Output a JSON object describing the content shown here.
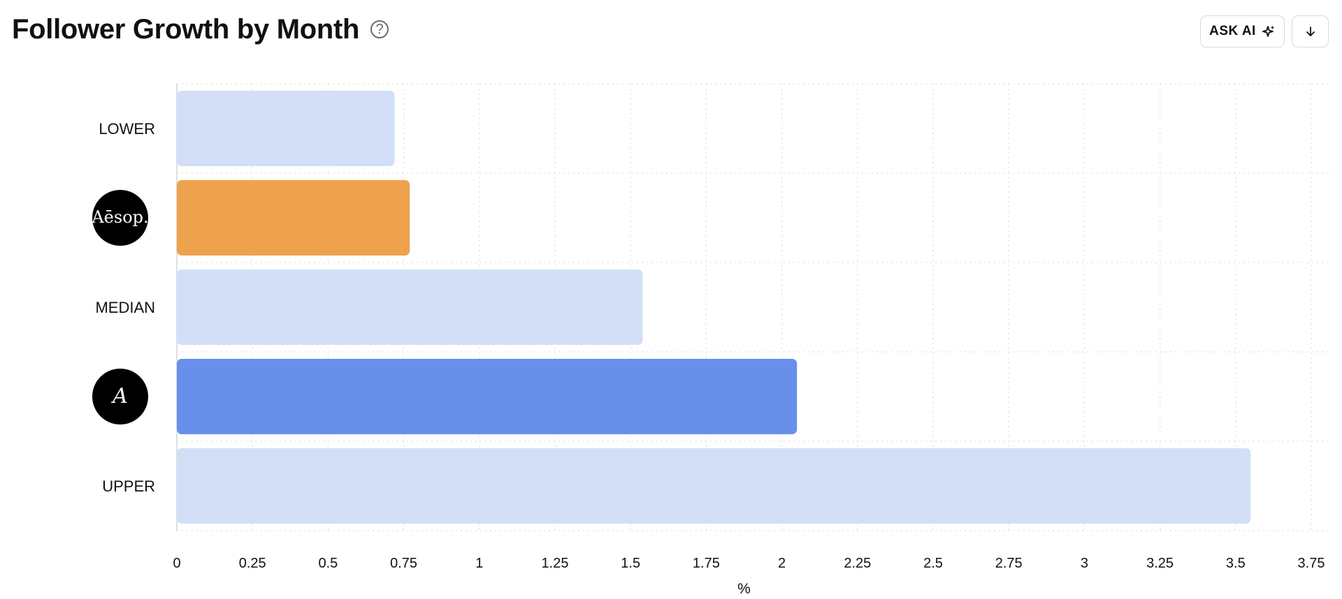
{
  "header": {
    "title": "Follower Growth by Month",
    "help_icon": "question-circle-icon",
    "ask_ai_label": "ASK AI",
    "ask_ai_icon": "sparkle-icon",
    "download_icon": "arrow-down-icon"
  },
  "chart_data": {
    "type": "bar",
    "orientation": "horizontal",
    "title": "Follower Growth by Month",
    "xlabel": "%",
    "ylabel": "",
    "xlim": [
      0,
      3.75
    ],
    "x_ticks": [
      "0",
      "0.25",
      "0.5",
      "0.75",
      "1",
      "1.25",
      "1.5",
      "1.75",
      "2",
      "2.25",
      "2.5",
      "2.75",
      "3",
      "3.25",
      "3.5",
      "3.75"
    ],
    "grid": true,
    "categories": [
      {
        "label": "LOWER",
        "kind": "text",
        "value": 0.72,
        "color": "#d2dff7"
      },
      {
        "label": "Aēsop.",
        "kind": "logo",
        "value": 0.77,
        "color": "#efa24e"
      },
      {
        "label": "MEDIAN",
        "kind": "text",
        "value": 1.54,
        "color": "#d2dff7"
      },
      {
        "label": "A",
        "kind": "logo",
        "value": 2.05,
        "color": "#6890ea"
      },
      {
        "label": "UPPER",
        "kind": "text",
        "value": 3.55,
        "color": "#d2dff7"
      }
    ]
  }
}
